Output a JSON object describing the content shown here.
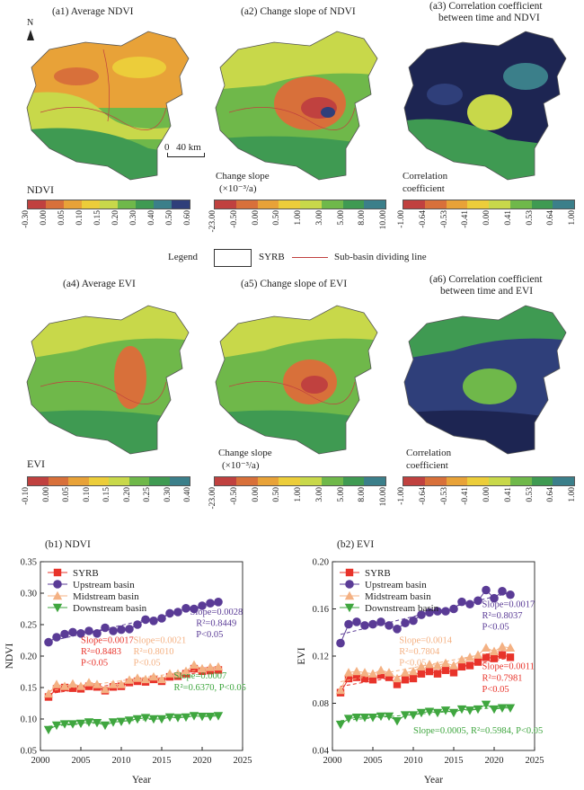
{
  "maps": {
    "a1": {
      "title": "(a1) Average NDVI",
      "var": "NDVI",
      "scale_bar": "40 km",
      "north": "N"
    },
    "a2": {
      "title": "(a2) Change slope of NDVI",
      "cb_label1": "Change slope",
      "cb_label2": "(×10⁻³/a)"
    },
    "a3": {
      "title1": "(a3) Correlation coefficient",
      "title2": "between time and NDVI",
      "cb_label1": "Correlation",
      "cb_label2": "coefficient"
    },
    "a4": {
      "title": "(a4) Average EVI",
      "var": "EVI"
    },
    "a5": {
      "title": "(a5) Change slope of EVI",
      "cb_label1": "Change slope",
      "cb_label2": "(×10⁻³/a)"
    },
    "a6": {
      "title1": "(a6) Correlation coefficient",
      "title2": "between time and EVI",
      "cb_label1": "Correlation",
      "cb_label2": "coefficient"
    }
  },
  "colorbars": {
    "ndvi_ticks": [
      "-0.30",
      "0.00",
      "0.05",
      "0.10",
      "0.15",
      "0.20",
      "0.30",
      "0.40",
      "0.50",
      "0.60"
    ],
    "evi_ticks": [
      "-0.10",
      "0.00",
      "0.05",
      "0.10",
      "0.15",
      "0.20",
      "0.25",
      "0.30",
      "0.40"
    ],
    "slope_ticks": [
      "-23.00",
      "-0.50",
      "0.00",
      "0.50",
      "1.00",
      "3.00",
      "5.00",
      "8.00",
      "10.00"
    ],
    "corr_ticks": [
      "-1.00",
      "-0.64",
      "-0.53",
      "-0.41",
      "0.00",
      "0.41",
      "0.53",
      "0.64",
      "1.00"
    ],
    "value_colors": [
      "#c0413f",
      "#d8703a",
      "#e8a238",
      "#eccd3a",
      "#c8d84a",
      "#6fb84a",
      "#3f9a52",
      "#3b7f8a",
      "#2f3f7a"
    ],
    "corr_colors": [
      "#c0413f",
      "#d8703a",
      "#e8a238",
      "#eccd3a",
      "#c8d84a",
      "#6fb84a",
      "#3f9a52",
      "#3b7f8a",
      "#2f3f7a",
      "#1d2552"
    ]
  },
  "legend": {
    "title": "Legend",
    "box_label": "SYRB",
    "line_label": "Sub-basin dividing line"
  },
  "chart_data": [
    {
      "type": "line",
      "title": "(b1) NDVI",
      "xlabel": "Year",
      "ylabel": "NDVI",
      "xlim": [
        2000,
        2025
      ],
      "ylim": [
        0.05,
        0.35
      ],
      "xticks": [
        2000,
        2005,
        2010,
        2015,
        2020,
        2025
      ],
      "yticks": [
        0.05,
        0.1,
        0.15,
        0.2,
        0.25,
        0.3,
        0.35
      ],
      "x": [
        2001,
        2002,
        2003,
        2004,
        2005,
        2006,
        2007,
        2008,
        2009,
        2010,
        2011,
        2012,
        2013,
        2014,
        2015,
        2016,
        2017,
        2018,
        2019,
        2020,
        2021,
        2022
      ],
      "series": [
        {
          "name": "SYRB",
          "color": "#e8332a",
          "marker": "square",
          "values": [
            0.135,
            0.148,
            0.15,
            0.149,
            0.148,
            0.152,
            0.151,
            0.145,
            0.151,
            0.152,
            0.158,
            0.16,
            0.159,
            0.163,
            0.16,
            0.167,
            0.168,
            0.172,
            0.18,
            0.176,
            0.177,
            0.178
          ]
        },
        {
          "name": "Upstream basin",
          "color": "#5a3b96",
          "marker": "circle",
          "values": [
            0.222,
            0.23,
            0.235,
            0.238,
            0.236,
            0.24,
            0.236,
            0.245,
            0.24,
            0.242,
            0.243,
            0.25,
            0.258,
            0.256,
            0.26,
            0.268,
            0.27,
            0.276,
            0.275,
            0.28,
            0.284,
            0.286
          ]
        },
        {
          "name": "Midstream basin",
          "color": "#f4b183",
          "marker": "triangle-up",
          "values": [
            0.14,
            0.155,
            0.152,
            0.156,
            0.152,
            0.158,
            0.155,
            0.147,
            0.155,
            0.155,
            0.162,
            0.165,
            0.163,
            0.167,
            0.163,
            0.172,
            0.172,
            0.176,
            0.186,
            0.18,
            0.182,
            0.183
          ]
        },
        {
          "name": "Downstream basin",
          "color": "#3fa63f",
          "marker": "triangle-down",
          "values": [
            0.083,
            0.09,
            0.092,
            0.092,
            0.093,
            0.095,
            0.094,
            0.09,
            0.095,
            0.096,
            0.098,
            0.1,
            0.102,
            0.1,
            0.1,
            0.103,
            0.102,
            0.103,
            0.105,
            0.104,
            0.104,
            0.105
          ]
        }
      ],
      "annotations": [
        {
          "text": "Slope=0.0028",
          "color": "#5a3b96"
        },
        {
          "text": "R²=0.8449",
          "color": "#5a3b96"
        },
        {
          "text": "P<0.05",
          "color": "#5a3b96"
        },
        {
          "text": "Slope=0.0017",
          "color": "#e8332a"
        },
        {
          "text": "R²=0.8483",
          "color": "#e8332a"
        },
        {
          "text": "P<0.05",
          "color": "#e8332a"
        },
        {
          "text": "Slope=0.0021",
          "color": "#f4b183"
        },
        {
          "text": "R²=0.8010",
          "color": "#f4b183"
        },
        {
          "text": "P<0.05",
          "color": "#f4b183"
        },
        {
          "text": "Slope=0.0007",
          "color": "#3fa63f"
        },
        {
          "text": "R²=0.6370, P<0.05",
          "color": "#3fa63f"
        }
      ],
      "legend_position": "top-left"
    },
    {
      "type": "line",
      "title": "(b2) EVI",
      "xlabel": "Year",
      "ylabel": "EVI",
      "xlim": [
        2000,
        2025
      ],
      "ylim": [
        0.04,
        0.2
      ],
      "xticks": [
        2000,
        2005,
        2010,
        2015,
        2020,
        2025
      ],
      "yticks": [
        0.04,
        0.08,
        0.12,
        0.16,
        0.2
      ],
      "x": [
        2001,
        2002,
        2003,
        2004,
        2005,
        2006,
        2007,
        2008,
        2009,
        2010,
        2011,
        2012,
        2013,
        2014,
        2015,
        2016,
        2017,
        2018,
        2019,
        2020,
        2021,
        2022
      ],
      "series": [
        {
          "name": "SYRB",
          "color": "#e8332a",
          "marker": "square",
          "values": [
            0.089,
            0.101,
            0.102,
            0.101,
            0.1,
            0.104,
            0.102,
            0.096,
            0.1,
            0.101,
            0.105,
            0.107,
            0.105,
            0.108,
            0.106,
            0.111,
            0.112,
            0.115,
            0.119,
            0.118,
            0.121,
            0.119
          ]
        },
        {
          "name": "Upstream basin",
          "color": "#5a3b96",
          "marker": "circle",
          "values": [
            0.131,
            0.147,
            0.149,
            0.146,
            0.147,
            0.149,
            0.146,
            0.143,
            0.148,
            0.15,
            0.155,
            0.157,
            0.158,
            0.158,
            0.16,
            0.166,
            0.164,
            0.167,
            0.176,
            0.169,
            0.175,
            0.172
          ]
        },
        {
          "name": "Midstream basin",
          "color": "#f4b183",
          "marker": "triangle-up",
          "values": [
            0.091,
            0.106,
            0.107,
            0.106,
            0.105,
            0.108,
            0.106,
            0.101,
            0.106,
            0.107,
            0.111,
            0.113,
            0.112,
            0.114,
            0.112,
            0.117,
            0.119,
            0.121,
            0.127,
            0.124,
            0.128,
            0.127
          ]
        },
        {
          "name": "Downstream basin",
          "color": "#3fa63f",
          "marker": "triangle-down",
          "values": [
            0.062,
            0.067,
            0.068,
            0.068,
            0.068,
            0.069,
            0.069,
            0.065,
            0.07,
            0.07,
            0.072,
            0.073,
            0.072,
            0.074,
            0.072,
            0.075,
            0.074,
            0.075,
            0.079,
            0.075,
            0.076,
            0.076
          ]
        }
      ],
      "annotations": [
        {
          "text": "Slope=0.0017",
          "color": "#5a3b96"
        },
        {
          "text": "R²=0.8037",
          "color": "#5a3b96"
        },
        {
          "text": "P<0.05",
          "color": "#5a3b96"
        },
        {
          "text": "Slope=0.0014",
          "color": "#f4b183"
        },
        {
          "text": "R²=0.7804",
          "color": "#f4b183"
        },
        {
          "text": "P<0.05",
          "color": "#f4b183"
        },
        {
          "text": "Slope=0.0011",
          "color": "#e8332a"
        },
        {
          "text": "R²=0.7981",
          "color": "#e8332a"
        },
        {
          "text": "P<0.05",
          "color": "#e8332a"
        },
        {
          "text": "Slope=0.0005, R²=0.5984, P<0.05",
          "color": "#3fa63f"
        }
      ],
      "legend_position": "top-left"
    }
  ]
}
